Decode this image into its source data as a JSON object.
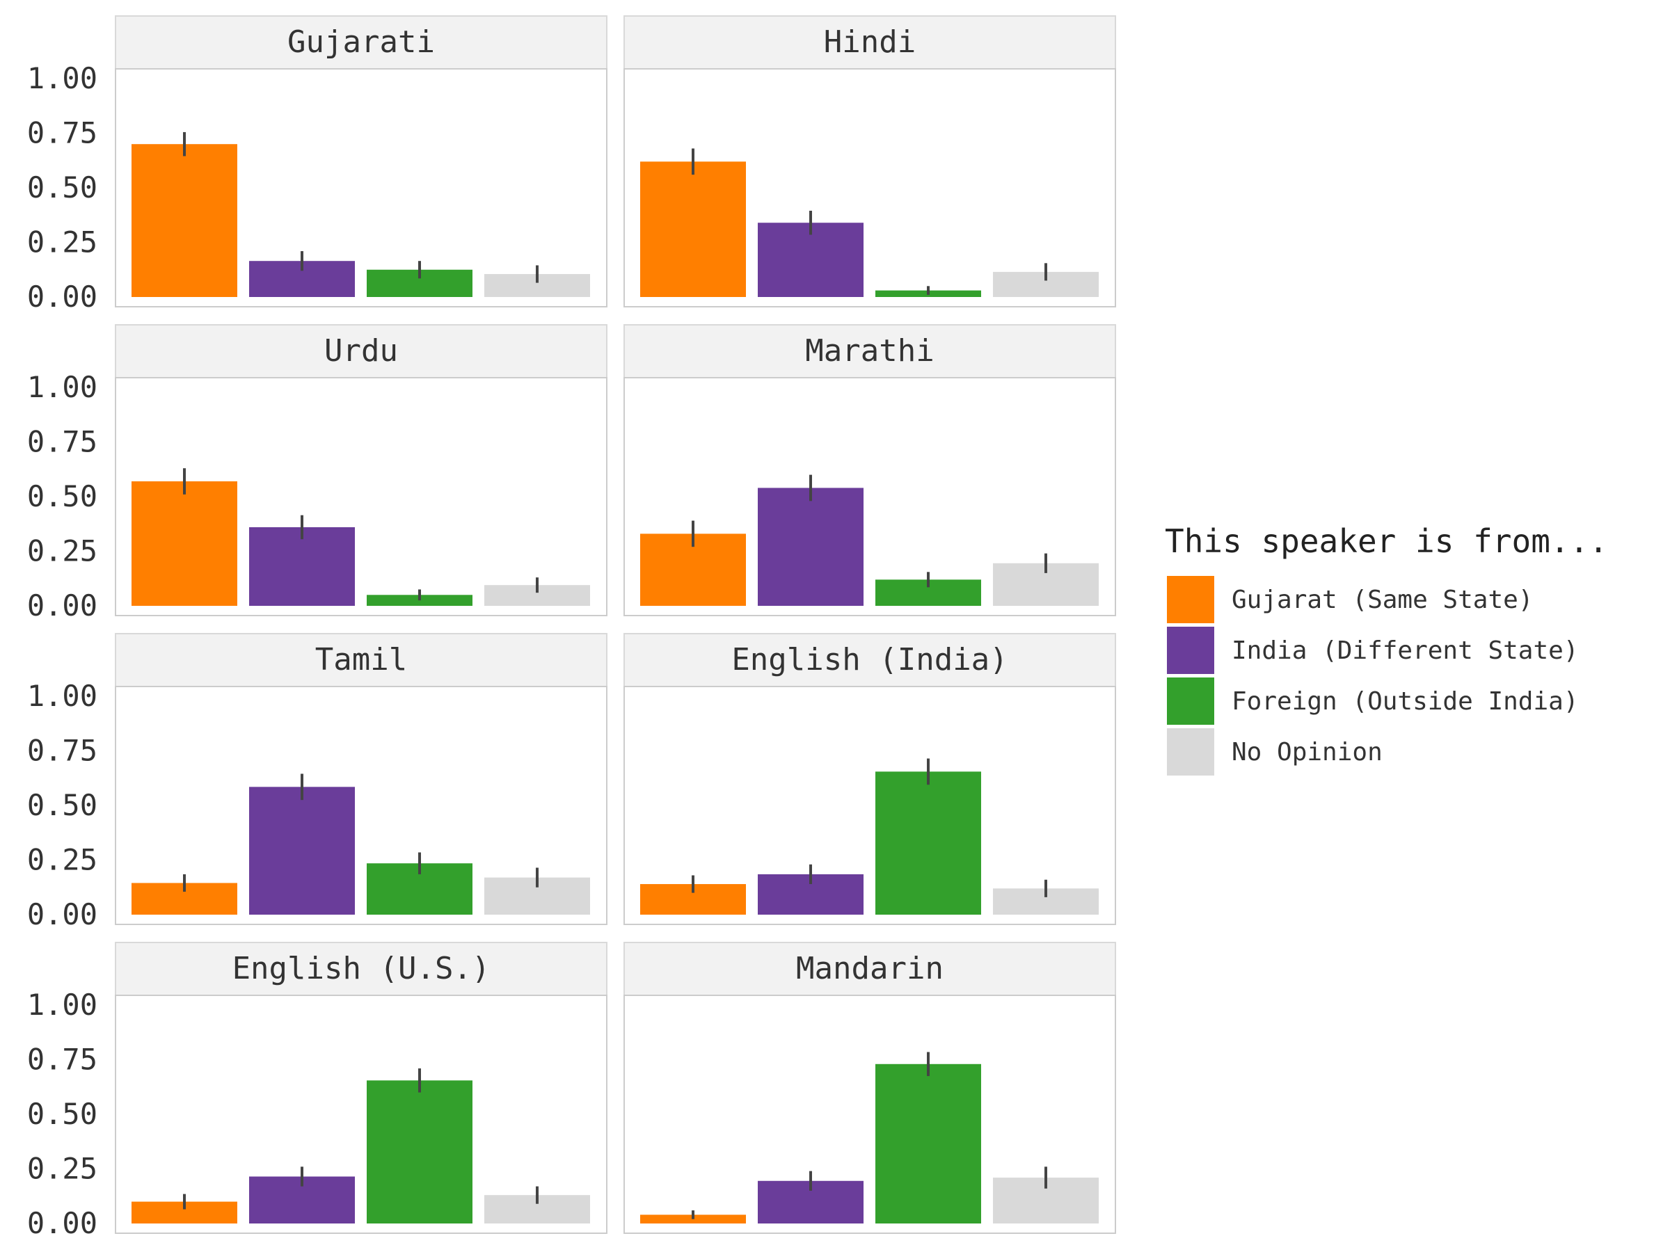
{
  "chart_data": {
    "type": "bar",
    "ylim": [
      0,
      1
    ],
    "y_ticks": [
      "1.00",
      "0.75",
      "0.50",
      "0.25",
      "0.00"
    ],
    "y_tick_values": [
      1,
      0.75,
      0.5,
      0.25,
      0
    ],
    "grid": false,
    "legend": {
      "title": "This speaker is from...",
      "placement": "right",
      "entries": [
        {
          "label": "Gujarat (Same State)",
          "color": "#FF7F00"
        },
        {
          "label": "India (Different State)",
          "color": "#6A3D9A"
        },
        {
          "label": "Foreign (Outside India)",
          "color": "#33A02C"
        },
        {
          "label": "No Opinion",
          "color": "#D9D9D9"
        }
      ]
    },
    "categories": [
      "Gujarat (Same State)",
      "India (Different State)",
      "Foreign (Outside India)",
      "No Opinion"
    ],
    "panels": [
      {
        "title": "Gujarati",
        "values": [
          0.7,
          0.165,
          0.125,
          0.105
        ],
        "errors": [
          0.055,
          0.045,
          0.04,
          0.04
        ]
      },
      {
        "title": "Hindi",
        "values": [
          0.62,
          0.34,
          0.03,
          0.115
        ],
        "errors": [
          0.06,
          0.055,
          0.02,
          0.04
        ]
      },
      {
        "title": "Urdu",
        "values": [
          0.57,
          0.36,
          0.05,
          0.095
        ],
        "errors": [
          0.06,
          0.055,
          0.025,
          0.035
        ]
      },
      {
        "title": "Marathi",
        "values": [
          0.33,
          0.54,
          0.12,
          0.195
        ],
        "errors": [
          0.06,
          0.06,
          0.035,
          0.045
        ]
      },
      {
        "title": "Tamil",
        "values": [
          0.145,
          0.585,
          0.235,
          0.17
        ],
        "errors": [
          0.04,
          0.06,
          0.05,
          0.045
        ]
      },
      {
        "title": "English (India)",
        "values": [
          0.14,
          0.185,
          0.655,
          0.12
        ],
        "errors": [
          0.04,
          0.045,
          0.06,
          0.04
        ]
      },
      {
        "title": "English (U.S.)",
        "values": [
          0.1,
          0.215,
          0.655,
          0.13
        ],
        "errors": [
          0.035,
          0.045,
          0.055,
          0.04
        ]
      },
      {
        "title": "Mandarin",
        "values": [
          0.04,
          0.195,
          0.73,
          0.21
        ],
        "errors": [
          0.02,
          0.045,
          0.055,
          0.05
        ]
      }
    ]
  }
}
